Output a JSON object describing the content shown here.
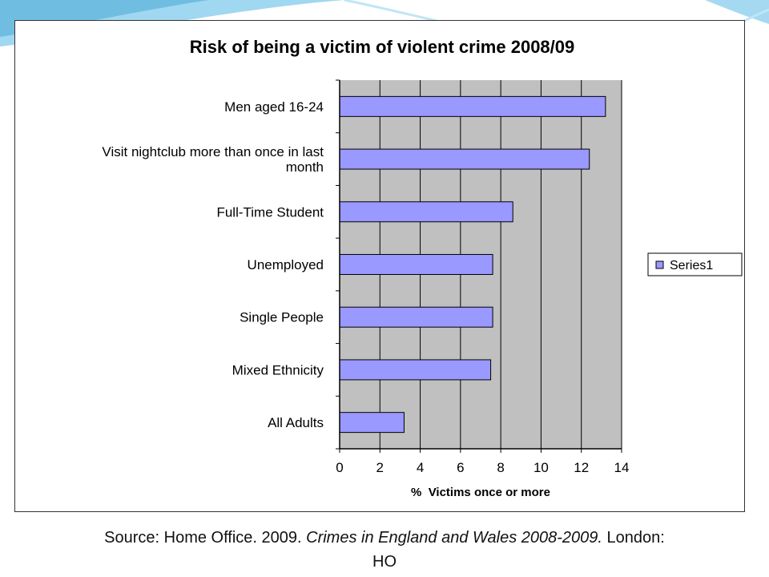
{
  "slide": {
    "source_prefix": "Source: Home Office. 2009. ",
    "source_title": "Crimes in England and Wales 2008-2009.",
    "source_suffix": " London:",
    "source_line2": "HO"
  },
  "colors": {
    "plot_bg": "#c0c0c0",
    "bar_fill": "#9999ff",
    "bar_stroke": "#000000",
    "deco_blue": "#6fc3e6"
  },
  "chart_data": {
    "type": "bar",
    "orientation": "horizontal",
    "title": "Risk of being a victim of violent crime 2008/09",
    "xlabel": "%  Victims once or more",
    "ylabel": "",
    "xlim": [
      0,
      14
    ],
    "xticks": [
      0,
      2,
      4,
      6,
      8,
      10,
      12,
      14
    ],
    "grid": true,
    "legend": "right",
    "categories": [
      [
        "Men aged 16-24"
      ],
      [
        "Visit nightclub more than once in last",
        "month"
      ],
      [
        "Full-Time Student"
      ],
      [
        "Unemployed"
      ],
      [
        "Single People"
      ],
      [
        "Mixed Ethnicity"
      ],
      [
        "All Adults"
      ]
    ],
    "series": [
      {
        "name": "Series1",
        "values": [
          13.2,
          12.4,
          8.6,
          7.6,
          7.6,
          7.5,
          3.2
        ]
      }
    ]
  }
}
